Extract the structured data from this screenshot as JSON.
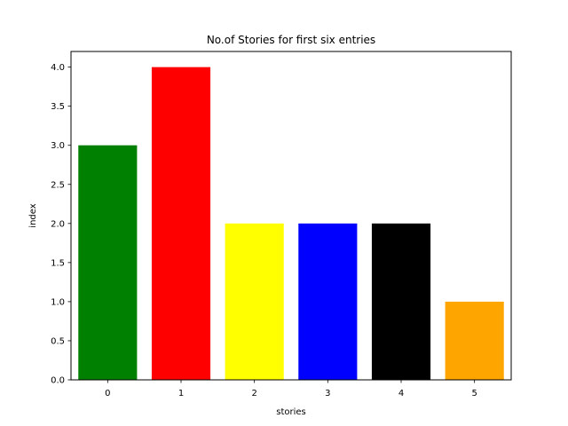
{
  "chart_data": {
    "type": "bar",
    "title": "No.of Stories for first six entries",
    "xlabel": "stories",
    "ylabel": "index",
    "categories": [
      "0",
      "1",
      "2",
      "3",
      "4",
      "5"
    ],
    "values": [
      3,
      4,
      2,
      2,
      2,
      1
    ],
    "colors": [
      "#008000",
      "#ff0000",
      "#ffff00",
      "#0000ff",
      "#000000",
      "#ffa500"
    ],
    "ylim": [
      0,
      4.2
    ],
    "xlim": [
      -0.5,
      5.5
    ],
    "yticks": [
      "0.0",
      "0.5",
      "1.0",
      "1.5",
      "2.0",
      "2.5",
      "3.0",
      "3.5",
      "4.0"
    ],
    "grid": false,
    "legend": "none"
  }
}
